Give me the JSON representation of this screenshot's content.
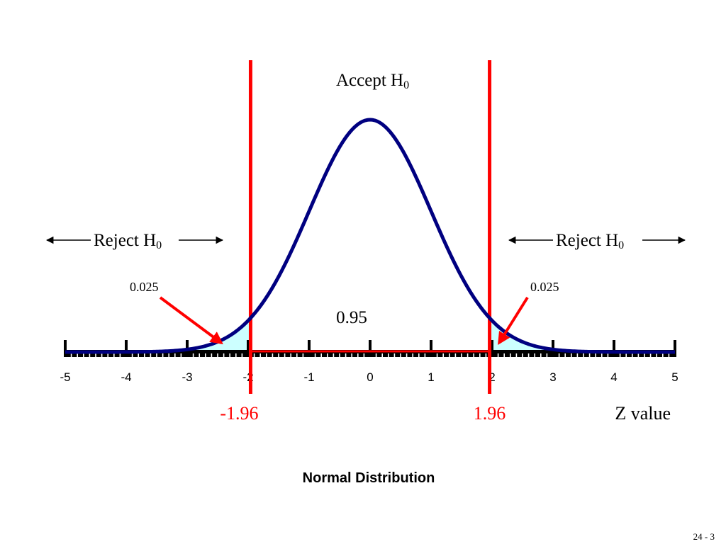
{
  "chart_data": {
    "type": "line",
    "title": "Normal Distribution",
    "distribution": "standard normal",
    "xlabel": "Z value",
    "xlim": [
      -5,
      5
    ],
    "x_ticks": [
      "-5",
      "-4",
      "-3",
      "-2",
      "-1",
      "0",
      "1",
      "2",
      "3",
      "4",
      "5"
    ],
    "minor_tick_step": 0.1,
    "critical_values": [
      -1.96,
      1.96
    ],
    "critical_labels": [
      "-1.96",
      "1.96"
    ],
    "center_area": "0.95",
    "tail_areas": [
      "0.025",
      "0.025"
    ],
    "accept_label": "Accept H",
    "reject_label": "Reject H",
    "hypothesis_subscript": "0",
    "colors": {
      "curve": "#000080",
      "critical_line": "#ff0000",
      "tail_fill": "#ccffff",
      "arrow": "#ff0000",
      "axis": "#000000"
    },
    "legend": "none",
    "grid": false
  },
  "slide_number": "24 - 3"
}
